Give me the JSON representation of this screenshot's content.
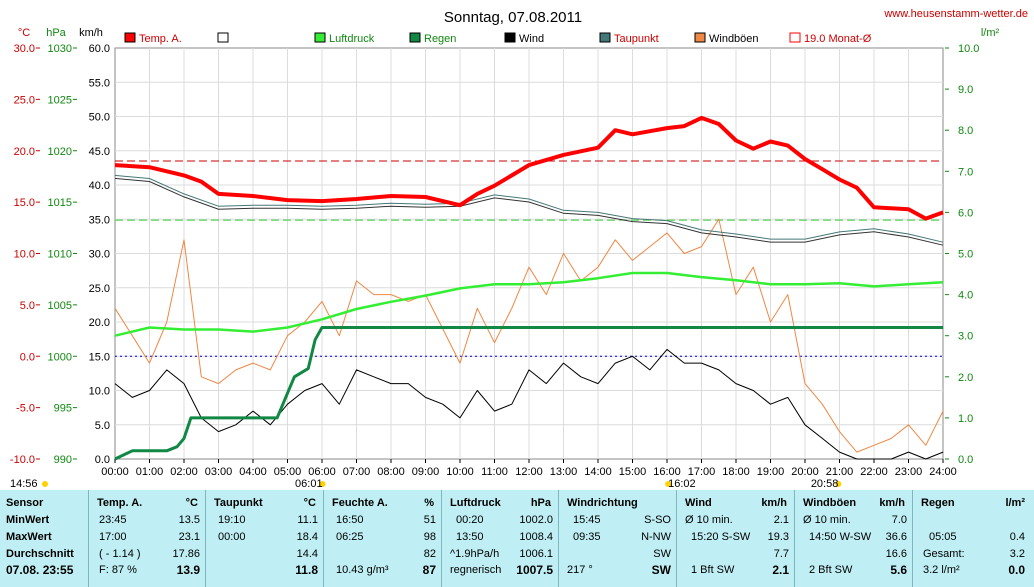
{
  "site": "www.heusenstamm-wetter.de",
  "title": "Sonntag, 07.08.2011",
  "units": {
    "temp": "°C",
    "pressure": "hPa",
    "wind": "km/h",
    "rain": "l/m²"
  },
  "legend": [
    {
      "label": "Temp. A.",
      "color": "#ff0000",
      "filled": true
    },
    {
      "label": "",
      "color": "#000000",
      "filled": false
    },
    {
      "label": "Luftdruck",
      "color": "#33ee33",
      "filled": true
    },
    {
      "label": "Regen",
      "color": "#118844",
      "filled": true
    },
    {
      "label": "Wind",
      "color": "#000000",
      "filled": true
    },
    {
      "label": "Taupunkt",
      "color": "#447777",
      "filled": true
    },
    {
      "label": "Windböen",
      "color": "#ee8844",
      "filled": true
    },
    {
      "label": "19.0 Monat-Ø",
      "color": "#ff0000",
      "filled": false
    }
  ],
  "chart_data": {
    "type": "line",
    "title": "Sonntag, 07.08.2011",
    "x_ticks": [
      "00:00",
      "01:00",
      "02:00",
      "03:00",
      "04:00",
      "05:00",
      "06:00",
      "07:00",
      "08:00",
      "09:00",
      "10:00",
      "11:00",
      "12:00",
      "13:00",
      "14:00",
      "15:00",
      "16:00",
      "17:00",
      "18:00",
      "19:00",
      "20:00",
      "21:00",
      "22:00",
      "23:00",
      "24:00"
    ],
    "temp_ticks": [
      "30.0",
      "25.0",
      "20.0",
      "15.0",
      "10.0",
      "5.0",
      "0.0",
      "-5.0",
      "-10.0"
    ],
    "pressure_ticks": [
      "1030",
      "1025",
      "1020",
      "1015",
      "1010",
      "1005",
      "1000",
      "995",
      "990"
    ],
    "wind_ticks": [
      "60.0",
      "55.0",
      "50.0",
      "45.0",
      "40.0",
      "35.0",
      "30.0",
      "25.0",
      "20.0",
      "15.0",
      "10.0",
      "5.0",
      "0.0"
    ],
    "rain_ticks": [
      "10.0",
      "9.0",
      "8.0",
      "7.0",
      "6.0",
      "5.0",
      "4.0",
      "3.0",
      "2.0",
      "1.0",
      "0.0"
    ],
    "ranges": {
      "temp": [
        -10,
        30
      ],
      "pressure": [
        990,
        1030
      ],
      "wind": [
        0,
        60
      ],
      "rain": [
        0,
        10
      ]
    },
    "markers": [
      "14:56",
      "06:01",
      "16:02",
      "20:58"
    ],
    "reference_lines": {
      "temp_month_avg": 19.0,
      "pressure_ref": 1013.25,
      "zero_temp": 0.0
    },
    "series": [
      {
        "name": "Temp. A.",
        "axis": "temp",
        "color": "#ff0000",
        "x": [
          0,
          1,
          2,
          2.5,
          3,
          4,
          5,
          6,
          7,
          8,
          9,
          10,
          10.5,
          11,
          12,
          13,
          14,
          14.5,
          15,
          15.5,
          16,
          16.5,
          17,
          17.5,
          18,
          18.5,
          19,
          19.5,
          20,
          20.5,
          21,
          21.5,
          22,
          23,
          23.5,
          24
        ],
        "y": [
          18.6,
          18.4,
          17.6,
          17.0,
          15.8,
          15.6,
          15.2,
          15.1,
          15.3,
          15.6,
          15.5,
          14.7,
          15.8,
          16.6,
          18.6,
          19.6,
          20.3,
          22.0,
          21.6,
          21.9,
          22.2,
          22.4,
          23.2,
          22.6,
          21.0,
          20.2,
          20.9,
          20.5,
          19.2,
          18.2,
          17.2,
          16.4,
          14.5,
          14.3,
          13.4,
          14.0
        ]
      },
      {
        "name": "Taupunkt",
        "axis": "temp",
        "color": "#447777",
        "x": [
          0,
          1,
          2,
          3,
          4,
          5,
          6,
          7,
          8,
          9,
          10,
          11,
          12,
          13,
          14,
          15,
          16,
          17,
          18,
          19,
          20,
          21,
          22,
          23,
          24
        ],
        "y": [
          17.6,
          17.3,
          15.8,
          14.6,
          14.7,
          14.7,
          14.6,
          14.7,
          14.9,
          14.8,
          14.9,
          15.7,
          15.3,
          14.2,
          14.0,
          13.4,
          13.2,
          12.3,
          11.9,
          11.4,
          11.4,
          12.1,
          12.4,
          11.9,
          11.1
        ]
      },
      {
        "name": "Luftdruck",
        "axis": "pressure",
        "color": "#33ee33",
        "x": [
          0,
          1,
          2,
          3,
          4,
          5,
          6,
          7,
          8,
          9,
          10,
          11,
          12,
          13,
          14,
          15,
          16,
          17,
          18,
          19,
          20,
          21,
          22,
          23,
          24
        ],
        "y": [
          1002.0,
          1002.8,
          1002.6,
          1002.6,
          1002.4,
          1002.8,
          1003.6,
          1004.6,
          1005.3,
          1005.9,
          1006.6,
          1007.0,
          1007.0,
          1007.2,
          1007.6,
          1008.1,
          1008.1,
          1007.7,
          1007.4,
          1007.0,
          1007.0,
          1007.1,
          1006.8,
          1007.0,
          1007.2
        ]
      },
      {
        "name": "Regen",
        "axis": "rain",
        "color": "#118844",
        "x": [
          0,
          0.5,
          1.5,
          1.8,
          2.0,
          2.2,
          3.0,
          4.0,
          4.7,
          5.0,
          5.2,
          5.6,
          5.8,
          6.0,
          6.2,
          24
        ],
        "y": [
          0,
          0.2,
          0.2,
          0.3,
          0.5,
          1.0,
          1.0,
          1.0,
          1.0,
          1.6,
          2.0,
          2.2,
          2.9,
          3.2,
          3.2,
          3.2
        ]
      },
      {
        "name": "Wind",
        "axis": "wind",
        "color": "#000000",
        "x": [
          0,
          0.5,
          1,
          1.5,
          2,
          2.5,
          3,
          3.5,
          4,
          4.5,
          5,
          5.5,
          6,
          6.5,
          7,
          7.5,
          8,
          8.5,
          9,
          9.5,
          10,
          10.5,
          11,
          11.5,
          12,
          12.5,
          13,
          13.5,
          14,
          14.5,
          15,
          15.5,
          16,
          16.5,
          17,
          17.5,
          18,
          18.5,
          19,
          19.5,
          20,
          20.5,
          21,
          21.5,
          22,
          22.5,
          23,
          23.5,
          24
        ],
        "y": [
          11,
          9,
          10,
          13,
          11,
          6,
          4,
          5,
          7,
          5,
          8,
          10,
          11,
          8,
          13,
          12,
          11,
          11,
          9,
          8,
          6,
          10,
          7,
          8,
          13,
          11,
          14,
          12,
          11,
          14,
          15,
          13,
          16,
          14,
          14,
          13,
          11,
          10,
          8,
          9,
          5,
          3,
          1,
          0,
          0,
          0,
          1,
          0,
          1
        ]
      },
      {
        "name": "Windböen",
        "axis": "wind",
        "color": "#ee8844",
        "x": [
          0,
          0.5,
          1,
          1.5,
          2,
          2.5,
          3,
          3.5,
          4,
          4.5,
          5,
          5.5,
          6,
          6.5,
          7,
          7.5,
          8,
          8.5,
          9,
          9.5,
          10,
          10.5,
          11,
          11.5,
          12,
          12.5,
          13,
          13.5,
          14,
          14.5,
          15,
          15.5,
          16,
          16.5,
          17,
          17.5,
          18,
          18.5,
          19,
          19.5,
          20,
          20.5,
          21,
          21.5,
          22,
          22.5,
          23,
          23.5,
          24
        ],
        "y": [
          22,
          18,
          14,
          20,
          32,
          12,
          11,
          13,
          14,
          13,
          18,
          20,
          23,
          18,
          26,
          24,
          24,
          23,
          24,
          19,
          14,
          22,
          17,
          22,
          28,
          24,
          30,
          26,
          28,
          32,
          29,
          31,
          33,
          30,
          31,
          35,
          24,
          28,
          20,
          24,
          11,
          8,
          4,
          1,
          2,
          3,
          5,
          2,
          7
        ]
      }
    ]
  },
  "table": {
    "row_labels": [
      "Sensor",
      "MinWert",
      "MaxWert",
      "Durchschnitt",
      "07.08. 23:55"
    ],
    "temp": {
      "title": "Temp. A.",
      "unit": "°C",
      "rows": [
        [
          "23:45",
          "13.5"
        ],
        [
          "17:00",
          "23.1"
        ],
        [
          "( - 1.14 )",
          "17.86"
        ],
        [
          "F: 87 %",
          "13.9"
        ]
      ]
    },
    "dew": {
      "title": "Taupunkt",
      "unit": "°C",
      "rows": [
        [
          "19:10",
          "11.1"
        ],
        [
          "00:00",
          "18.4"
        ],
        [
          "",
          "14.4"
        ],
        [
          "",
          "11.8"
        ]
      ]
    },
    "hum": {
      "title": "Feuchte A.",
      "unit": "%",
      "rows": [
        [
          "16:50",
          "51"
        ],
        [
          "06:25",
          "98"
        ],
        [
          "",
          "82"
        ],
        [
          "10.43 g/m³",
          "87"
        ]
      ]
    },
    "press": {
      "title": "Luftdruck",
      "unit": "hPa",
      "rows": [
        [
          "00:20",
          "1002.0"
        ],
        [
          "13:50",
          "1008.4"
        ],
        [
          "^1.9hPa/h",
          "1006.1"
        ],
        [
          "regnerisch",
          "1007.5"
        ]
      ]
    },
    "dir": {
      "title": "Windrichtung",
      "unit": "",
      "rows": [
        [
          "15:45",
          "S-SO"
        ],
        [
          "09:35",
          "N-NW"
        ],
        [
          "",
          "SW"
        ],
        [
          "217 °",
          "SW"
        ]
      ]
    },
    "wind": {
      "title": "Wind",
      "unit": "km/h",
      "rows": [
        [
          "Ø 10 min.",
          "2.1"
        ],
        [
          "15:20  S-SW",
          "19.3"
        ],
        [
          "",
          "7.7"
        ],
        [
          "1 Bft SW",
          "2.1"
        ]
      ]
    },
    "gust": {
      "title": "Windböen",
      "unit": "km/h",
      "rows": [
        [
          "Ø 10 min.",
          "7.0"
        ],
        [
          "14:50  W-SW",
          "36.6"
        ],
        [
          "",
          "16.6"
        ],
        [
          "2 Bft SW",
          "5.6"
        ]
      ]
    },
    "rain": {
      "title": "Regen",
      "unit": "l/m²",
      "rows": [
        [
          "05:05",
          "0.4"
        ],
        [
          "Gesamt:",
          "3.2"
        ],
        [
          "3.2 l/m²",
          "0.0"
        ]
      ]
    }
  }
}
